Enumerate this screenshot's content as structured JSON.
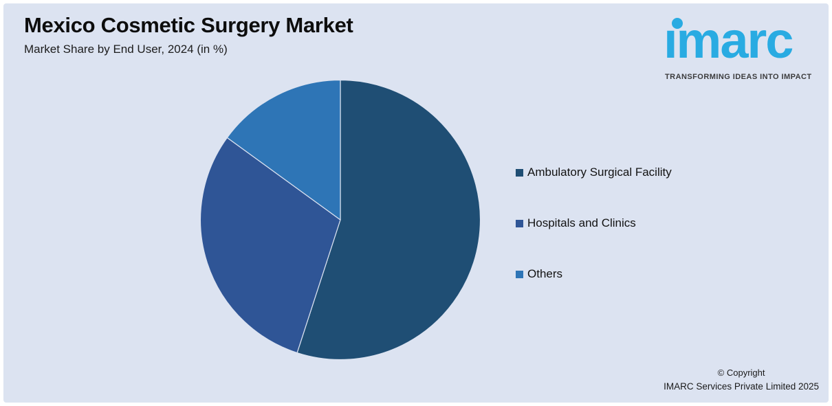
{
  "header": {
    "title": "Mexico Cosmetic Surgery Market",
    "subtitle": "Market Share by End User, 2024 (in %)"
  },
  "logo": {
    "wordmark": "imarc",
    "tagline": "TRANSFORMING IDEAS INTO IMPACT",
    "brand_color": "#29ABE2",
    "tagline_color": "#3B3B3C"
  },
  "footer": {
    "line1": "© Copyright",
    "line2": "IMARC Services Private Limited 2025"
  },
  "colors": {
    "background": "#DCE3F1",
    "page_border": "#FFFFFF"
  },
  "chart_data": {
    "type": "pie",
    "title": "Mexico Cosmetic Surgery Market",
    "subtitle": "Market Share by End User, 2024 (in %)",
    "unit": "%",
    "start_angle_deg": 0,
    "direction": "clockwise",
    "legend_position": "right",
    "categories": [
      "Ambulatory Surgical Facility",
      "Hospitals and Clinics",
      "Others"
    ],
    "values": [
      55,
      30,
      15
    ],
    "series": [
      {
        "label": "Ambulatory Surgical Facility",
        "value": 55,
        "color": "#1F4E74"
      },
      {
        "label": "Hospitals and Clinics",
        "value": 30,
        "color": "#2F5596"
      },
      {
        "label": "Others",
        "value": 15,
        "color": "#2E75B6"
      }
    ]
  }
}
